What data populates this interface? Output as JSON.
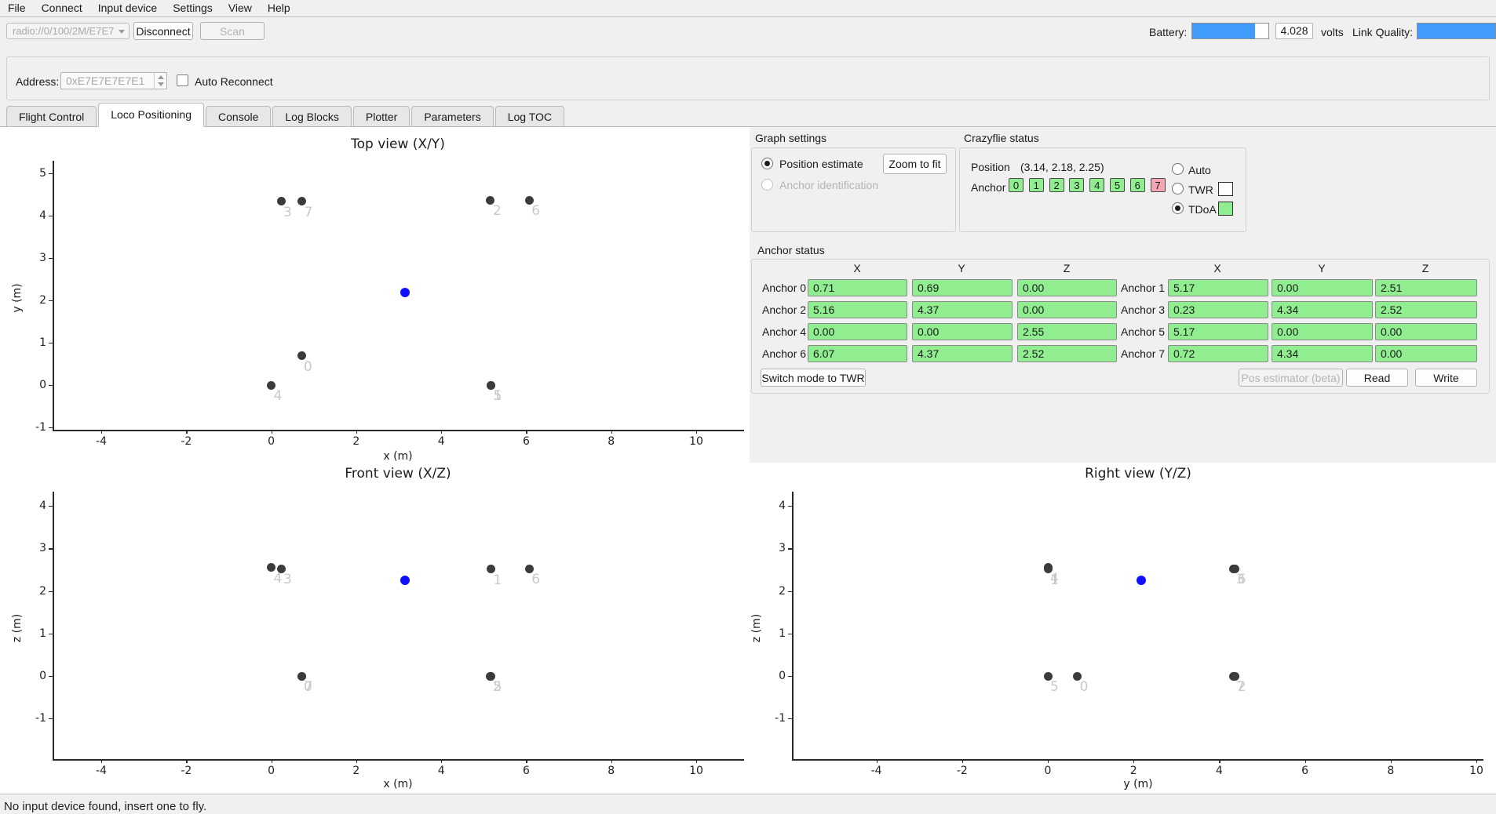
{
  "menu": {
    "items": [
      "File",
      "Connect",
      "Input device",
      "Settings",
      "View",
      "Help"
    ]
  },
  "toolbar": {
    "uri": "radio://0/100/2M/E7E7",
    "disconnect_label": "Disconnect",
    "scan_label": "Scan",
    "battery_label": "Battery:",
    "battery_volts": "4.028",
    "volts_label": "volts",
    "link_quality_label": "Link Quality:",
    "battery_percent": 82,
    "link_quality_percent": 100
  },
  "address": {
    "label": "Address:",
    "value": "0xE7E7E7E7E1",
    "auto_reconnect_label": "Auto Reconnect",
    "auto_reconnect_checked": false
  },
  "tabs": {
    "items": [
      "Flight Control",
      "Loco Positioning",
      "Console",
      "Log Blocks",
      "Plotter",
      "Parameters",
      "Log TOC"
    ],
    "active": "Loco Positioning"
  },
  "graph_settings": {
    "title": "Graph settings",
    "zoom_to_fit_label": "Zoom to fit",
    "options": [
      {
        "label": "Position estimate",
        "selected": true,
        "enabled": true
      },
      {
        "label": "Anchor identification",
        "selected": false,
        "enabled": false
      }
    ]
  },
  "crazyflie_status": {
    "title": "Crazyflie status",
    "position_label": "Position",
    "position_value": "(3.14, 2.18, 2.25)",
    "anchor_label": "Anchor",
    "anchor_badges": [
      {
        "id": "0",
        "state": "ok"
      },
      {
        "id": "1",
        "state": "ok"
      },
      {
        "id": "2",
        "state": "ok"
      },
      {
        "id": "3",
        "state": "ok"
      },
      {
        "id": "4",
        "state": "ok"
      },
      {
        "id": "5",
        "state": "ok"
      },
      {
        "id": "6",
        "state": "ok"
      },
      {
        "id": "7",
        "state": "bad"
      }
    ],
    "modes": [
      {
        "label": "Auto",
        "selected": false,
        "indicator": null
      },
      {
        "label": "TWR",
        "selected": false,
        "indicator": "#ffffff"
      },
      {
        "label": "TDoA",
        "selected": true,
        "indicator": "#90ee90"
      }
    ]
  },
  "anchor_status": {
    "title": "Anchor status",
    "col_headers": [
      "X",
      "Y",
      "Z"
    ],
    "rows_left": [
      {
        "label": "Anchor 0",
        "x": "0.71",
        "y": "0.69",
        "z": "0.00"
      },
      {
        "label": "Anchor 2",
        "x": "5.16",
        "y": "4.37",
        "z": "0.00"
      },
      {
        "label": "Anchor 4",
        "x": "0.00",
        "y": "0.00",
        "z": "2.55"
      },
      {
        "label": "Anchor 6",
        "x": "6.07",
        "y": "4.37",
        "z": "2.52"
      }
    ],
    "rows_right": [
      {
        "label": "Anchor 1",
        "x": "5.17",
        "y": "0.00",
        "z": "2.51"
      },
      {
        "label": "Anchor 3",
        "x": "0.23",
        "y": "4.34",
        "z": "2.52"
      },
      {
        "label": "Anchor 5",
        "x": "5.17",
        "y": "0.00",
        "z": "0.00"
      },
      {
        "label": "Anchor 7",
        "x": "0.72",
        "y": "4.34",
        "z": "0.00"
      }
    ],
    "switch_mode_label": "Switch mode to TWR",
    "pos_estimator_label": "Pos estimator (beta)",
    "read_label": "Read",
    "write_label": "Write"
  },
  "statusbar": {
    "text": "No input device found, insert one to fly."
  },
  "colors": {
    "accent_blue": "#3f9cfa",
    "anchor_ok_green": "#90ee90",
    "anchor_bad_pink": "#f2a7b3",
    "estimate_blue": "#1010ff",
    "anchor_dot": "#3b3b3b",
    "anchor_label_gray": "#c9c9c9"
  },
  "chart_data": [
    {
      "type": "scatter",
      "title": "Top view (X/Y)",
      "xlabel": "x (m)",
      "ylabel": "y (m)",
      "xticks": [
        -4,
        -2,
        0,
        2,
        4,
        6,
        8,
        10
      ],
      "yticks": [
        5,
        4,
        3,
        2,
        1,
        0,
        -1
      ],
      "xlim": [
        -5.1,
        11.1
      ],
      "ylim": [
        -1.2,
        5.3
      ],
      "grid": false,
      "legend": "none",
      "points": [
        {
          "label": "0",
          "x": 0.71,
          "y": 0.69
        },
        {
          "label": "1",
          "x": 5.17,
          "y": 0.0
        },
        {
          "label": "2",
          "x": 5.16,
          "y": 4.37
        },
        {
          "label": "3",
          "x": 0.23,
          "y": 4.34
        },
        {
          "label": "4",
          "x": 0.0,
          "y": 0.0
        },
        {
          "label": "5",
          "x": 5.17,
          "y": 0.0
        },
        {
          "label": "6",
          "x": 6.07,
          "y": 4.37
        },
        {
          "label": "7",
          "x": 0.72,
          "y": 4.34
        }
      ],
      "estimate": {
        "label": "crazyflie-position",
        "x": 3.14,
        "y": 2.18
      }
    },
    {
      "type": "scatter",
      "title": "Front view (X/Z)",
      "xlabel": "x (m)",
      "ylabel": "z (m)",
      "xticks": [
        -4,
        -2,
        0,
        2,
        4,
        6,
        8,
        10
      ],
      "yticks": [
        4,
        3,
        2,
        1,
        0,
        -1
      ],
      "xlim": [
        -5.1,
        11.1
      ],
      "ylim": [
        -2.0,
        4.4
      ],
      "grid": false,
      "legend": "none",
      "points": [
        {
          "label": "0",
          "x": 0.71,
          "y": 0.0
        },
        {
          "label": "1",
          "x": 5.17,
          "y": 2.51
        },
        {
          "label": "2",
          "x": 5.16,
          "y": 0.0
        },
        {
          "label": "3",
          "x": 0.23,
          "y": 2.52
        },
        {
          "label": "4",
          "x": 0.0,
          "y": 2.55
        },
        {
          "label": "5",
          "x": 5.17,
          "y": 0.0
        },
        {
          "label": "6",
          "x": 6.07,
          "y": 2.52
        },
        {
          "label": "7",
          "x": 0.72,
          "y": 0.0
        }
      ],
      "estimate": {
        "label": "crazyflie-position",
        "x": 3.14,
        "y": 2.25
      }
    },
    {
      "type": "scatter",
      "title": "Right view (Y/Z)",
      "xlabel": "y (m)",
      "ylabel": "z (m)",
      "xticks": [
        -4,
        -2,
        0,
        2,
        4,
        6,
        8,
        10
      ],
      "yticks": [
        4,
        3,
        2,
        1,
        0,
        -1
      ],
      "xlim": [
        -5.9,
        10.2
      ],
      "ylim": [
        -2.0,
        4.4
      ],
      "grid": false,
      "legend": "none",
      "points": [
        {
          "label": "0",
          "x": 0.69,
          "y": 0.0
        },
        {
          "label": "1",
          "x": 0.0,
          "y": 2.51
        },
        {
          "label": "2",
          "x": 4.37,
          "y": 0.0
        },
        {
          "label": "3",
          "x": 4.34,
          "y": 2.52
        },
        {
          "label": "4",
          "x": 0.0,
          "y": 2.55
        },
        {
          "label": "5",
          "x": 0.0,
          "y": 0.0
        },
        {
          "label": "6",
          "x": 4.37,
          "y": 2.52
        },
        {
          "label": "7",
          "x": 4.34,
          "y": 0.0
        }
      ],
      "estimate": {
        "label": "crazyflie-position",
        "x": 2.18,
        "y": 2.25
      }
    }
  ]
}
